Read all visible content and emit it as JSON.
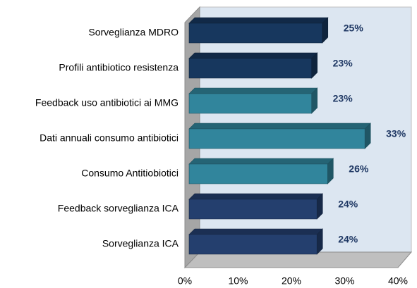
{
  "chart_data": {
    "type": "bar",
    "orientation": "horizontal",
    "categories": [
      "Sorveglianza MDRO",
      "Profili antibiotico resistenza",
      "Feedback uso antibiotici ai MMG",
      "Dati annuali consumo antibiotici",
      "Consumo Antitiobiotici",
      "Feedback sorveglianza ICA",
      "Sorveglianza ICA"
    ],
    "values": [
      25,
      23,
      23,
      33,
      26,
      24,
      24
    ],
    "value_labels": [
      "25%",
      "23%",
      "23%",
      "33%",
      "26%",
      "24%",
      "24%"
    ],
    "colors": [
      "#17375e",
      "#17375e",
      "#31859c",
      "#31859c",
      "#31859c",
      "#243f6e",
      "#243f6e"
    ],
    "xlim": [
      0,
      40
    ],
    "xticks": [
      {
        "value": 0,
        "label": "0%"
      },
      {
        "value": 10,
        "label": "10%"
      },
      {
        "value": 20,
        "label": "20%"
      },
      {
        "value": 30,
        "label": "30%"
      },
      {
        "value": 40,
        "label": "40%"
      }
    ]
  }
}
